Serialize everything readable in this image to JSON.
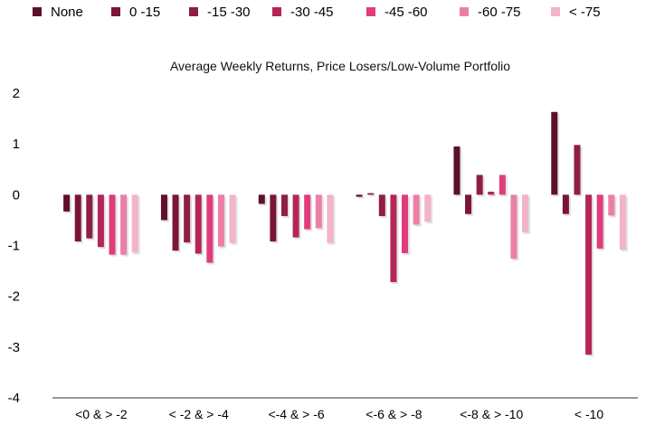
{
  "chart_data": {
    "type": "bar",
    "title": "Average Weekly Returns, Price Losers/Low-Volume Portfolio",
    "xlabel": "",
    "ylabel": "",
    "ylim": [
      -4,
      2
    ],
    "yticks": [
      2,
      1,
      0,
      -1,
      -2,
      -3,
      -4
    ],
    "legend_position": "top",
    "grid": false,
    "categories": [
      "<0 & > -2",
      "< -2 & > -4",
      "<-4 & > -6",
      "<-6 & > -8",
      "<-8 & > -10",
      "< -10"
    ],
    "series": [
      {
        "name": "None",
        "color": "#5e0f2a",
        "values": [
          -0.33,
          -0.5,
          -0.18,
          -0.04,
          0.95,
          1.63
        ]
      },
      {
        "name": "0 -15",
        "color": "#7a1538",
        "values": [
          -0.92,
          -1.1,
          -0.92,
          0.03,
          -0.38,
          -0.38
        ]
      },
      {
        "name": "-15 -30",
        "color": "#8f1d46",
        "values": [
          -0.86,
          -0.94,
          -0.42,
          -0.42,
          0.39,
          0.98
        ]
      },
      {
        "name": "-30 -45",
        "color": "#b42558",
        "values": [
          -1.03,
          -1.16,
          -0.84,
          -1.72,
          0.06,
          -3.15
        ]
      },
      {
        "name": "-45 -60",
        "color": "#e03c7c",
        "values": [
          -1.18,
          -1.34,
          -0.68,
          -1.15,
          0.39,
          -1.06
        ]
      },
      {
        "name": "-60 -75",
        "color": "#ec7fa6",
        "values": [
          -1.18,
          -1.02,
          -0.66,
          -0.59,
          -1.26,
          -0.41
        ]
      },
      {
        "name": "< -75",
        "color": "#f3b3ca",
        "values": [
          -1.14,
          -0.95,
          -0.95,
          -0.53,
          -0.74,
          -1.08
        ]
      }
    ]
  }
}
